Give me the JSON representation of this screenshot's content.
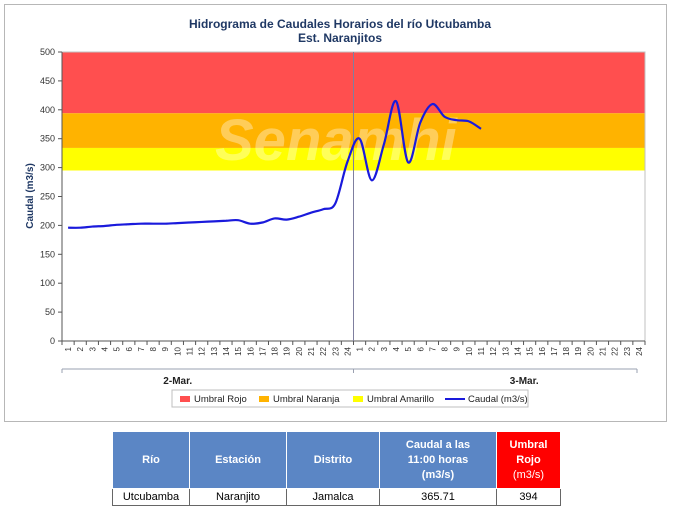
{
  "chart_data": {
    "type": "line",
    "title": "Hidrograma de Caudales Horarios del río Utcubamba",
    "subtitle": "Est. Naranjitos",
    "ylabel": "Caudal (m3/s)",
    "ylim": [
      0,
      500
    ],
    "yticks": [
      0,
      50,
      100,
      150,
      200,
      250,
      300,
      350,
      400,
      450,
      500
    ],
    "xtick_labels": [
      "1",
      "2",
      "3",
      "4",
      "5",
      "6",
      "7",
      "8",
      "9",
      "10",
      "11",
      "12",
      "13",
      "14",
      "15",
      "16",
      "17",
      "18",
      "19",
      "20",
      "21",
      "22",
      "23",
      "24",
      "1",
      "2",
      "3",
      "4",
      "5",
      "6",
      "7",
      "8",
      "9",
      "10",
      "11",
      "12",
      "13",
      "14",
      "15",
      "16",
      "17",
      "18",
      "19",
      "20",
      "21",
      "22",
      "23",
      "24"
    ],
    "day_labels": [
      "2-Mar.",
      "3-Mar."
    ],
    "thresholds": [
      {
        "name": "Umbral Rojo",
        "from": 394,
        "to": 500,
        "color": "#ff4f4f"
      },
      {
        "name": "Umbral Naranja",
        "from": 334,
        "to": 394,
        "color": "#ffb300"
      },
      {
        "name": "Umbral Amarillo",
        "from": 295,
        "to": 334,
        "color": "#ffff00"
      }
    ],
    "series": [
      {
        "name": "Caudal (m3/s)",
        "color": "#1a1adc",
        "x": [
          1,
          2,
          3,
          4,
          5,
          6,
          7,
          8,
          9,
          10,
          11,
          12,
          13,
          14,
          15,
          16,
          17,
          18,
          19,
          20,
          21,
          22,
          23,
          24,
          25,
          26,
          27,
          28,
          29,
          30,
          31,
          32,
          33,
          34,
          35
        ],
        "values": [
          196,
          196,
          198,
          199,
          201,
          202,
          203,
          203,
          203,
          204,
          205,
          206,
          207,
          208,
          209,
          203,
          205,
          212,
          210,
          215,
          222,
          228,
          238,
          310,
          350,
          278,
          340,
          415,
          309,
          378,
          410,
          388,
          382,
          380,
          367
        ]
      }
    ],
    "watermark": "Senamhi"
  },
  "table": {
    "headers": {
      "rio": "Río",
      "estacion": "Estación",
      "distrito": "Distrito",
      "caudal_l1": "Caudal a las",
      "caudal_l2": "11:00 horas",
      "caudal_l3": "(m3/s)",
      "umbral_l1": "Umbral",
      "umbral_l2": "Rojo",
      "umbral_l3": "(m3/s)"
    },
    "row": {
      "rio": "Utcubamba",
      "estacion": "Naranjito",
      "distrito": "Jamalca",
      "caudal": "365.71",
      "umbral": "394"
    }
  }
}
